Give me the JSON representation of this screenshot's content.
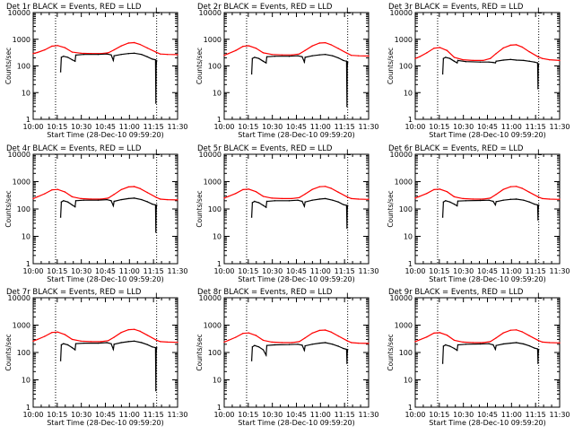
{
  "figure": {
    "x_title": "Start Time (28-Dec-10 09:59:20)",
    "y_label": "Counts/sec",
    "legend_marker": "L",
    "x_ticks": [
      "10:00",
      "10:15",
      "10:30",
      "10:45",
      "11:00",
      "11:15",
      "11:30"
    ],
    "y_ticks": [
      "1",
      "10",
      "100",
      "1000",
      "10000"
    ]
  },
  "colors": {
    "events": "#000000",
    "lld": "#ff0000",
    "frame": "#000000"
  },
  "chart_data": [
    {
      "type": "line",
      "title": "Det 1r BLACK = Events, RED = LLD",
      "xlim": [
        0,
        100
      ],
      "ylim": [
        1,
        10000
      ],
      "y_scale": "log",
      "vlines": [
        15.5,
        85.5
      ],
      "series": [
        {
          "color": "red",
          "x": [
            0,
            3,
            8,
            13,
            17,
            22,
            27,
            33,
            40,
            47,
            52,
            56,
            61,
            66,
            70,
            74,
            79,
            85,
            88,
            93,
            100
          ],
          "y": [
            290,
            320,
            400,
            550,
            580,
            480,
            330,
            300,
            290,
            290,
            310,
            400,
            560,
            720,
            750,
            640,
            470,
            330,
            280,
            270,
            265
          ]
        },
        {
          "color": "black",
          "x": [
            19,
            19.5,
            21,
            24,
            27,
            29,
            29.5,
            35,
            45,
            51,
            54,
            55.5,
            56,
            61,
            66,
            70,
            75,
            79,
            82.5,
            84.7,
            85,
            85.2,
            85.5
          ],
          "y": [
            60,
            210,
            230,
            210,
            170,
            150,
            255,
            270,
            270,
            280,
            260,
            160,
            240,
            270,
            290,
            300,
            270,
            220,
            180,
            170,
            4,
            110,
            160
          ]
        }
      ]
    },
    {
      "type": "line",
      "title": "Det 2r BLACK = Events, RED = LLD",
      "xlim": [
        0,
        100
      ],
      "ylim": [
        1,
        10000
      ],
      "y_scale": "log",
      "vlines": [
        15.5,
        85.5
      ],
      "series": [
        {
          "color": "red",
          "x": [
            0,
            3,
            8,
            13,
            17,
            22,
            27,
            33,
            40,
            47,
            52,
            56,
            61,
            66,
            70,
            74,
            79,
            85,
            88,
            93,
            100
          ],
          "y": [
            250,
            290,
            380,
            540,
            570,
            460,
            310,
            270,
            260,
            260,
            280,
            380,
            560,
            720,
            740,
            620,
            450,
            300,
            250,
            240,
            235
          ]
        },
        {
          "color": "black",
          "x": [
            19,
            19.5,
            21,
            24,
            27,
            29,
            29.5,
            35,
            45,
            51,
            54,
            55.5,
            56,
            61,
            66,
            70,
            75,
            79,
            82.5,
            84.7,
            85,
            85.2,
            85.5
          ],
          "y": [
            50,
            190,
            210,
            190,
            150,
            130,
            220,
            230,
            230,
            240,
            220,
            140,
            210,
            240,
            260,
            270,
            240,
            200,
            160,
            150,
            3,
            100,
            140
          ]
        }
      ]
    },
    {
      "type": "line",
      "title": "Det 3r BLACK = Events, RED = LLD",
      "xlim": [
        0,
        100
      ],
      "ylim": [
        1,
        10000
      ],
      "y_scale": "log",
      "vlines": [
        15.5,
        85.5
      ],
      "series": [
        {
          "color": "red",
          "x": [
            0,
            3,
            8,
            13,
            17,
            22,
            27,
            33,
            40,
            47,
            52,
            56,
            61,
            66,
            70,
            74,
            79,
            85,
            88,
            93,
            100
          ],
          "y": [
            190,
            220,
            310,
            460,
            490,
            380,
            210,
            170,
            160,
            160,
            190,
            290,
            470,
            600,
            620,
            510,
            340,
            220,
            190,
            170,
            160
          ]
        },
        {
          "color": "black",
          "x": [
            19,
            19.5,
            21,
            24,
            27,
            29,
            29.5,
            35,
            45,
            51,
            54,
            55.5,
            56,
            61,
            66,
            70,
            75,
            79,
            82.5,
            84.7,
            85,
            85.2,
            85.5
          ],
          "y": [
            50,
            190,
            210,
            190,
            150,
            130,
            160,
            145,
            140,
            140,
            135,
            130,
            150,
            165,
            175,
            165,
            160,
            150,
            140,
            130,
            14,
            90,
            120
          ]
        }
      ]
    },
    {
      "type": "line",
      "title": "Det 4r BLACK = Events, RED = LLD",
      "xlim": [
        0,
        100
      ],
      "ylim": [
        1,
        10000
      ],
      "y_scale": "log",
      "vlines": [
        15.5,
        85.5
      ],
      "series": [
        {
          "color": "red",
          "x": [
            0,
            3,
            8,
            13,
            17,
            22,
            27,
            33,
            40,
            47,
            52,
            56,
            61,
            66,
            70,
            74,
            79,
            85,
            88,
            93,
            100
          ],
          "y": [
            240,
            280,
            360,
            500,
            520,
            420,
            280,
            240,
            230,
            230,
            250,
            340,
            510,
            640,
            660,
            560,
            400,
            270,
            230,
            220,
            215
          ]
        },
        {
          "color": "black",
          "x": [
            19,
            19.5,
            21,
            24,
            27,
            29,
            29.5,
            35,
            45,
            51,
            54,
            55.5,
            56,
            61,
            66,
            70,
            75,
            79,
            82.5,
            84.7,
            85,
            85.2,
            85.5
          ],
          "y": [
            50,
            180,
            200,
            180,
            140,
            120,
            200,
            210,
            210,
            220,
            200,
            130,
            190,
            220,
            240,
            250,
            220,
            185,
            150,
            140,
            14,
            100,
            140
          ]
        }
      ]
    },
    {
      "type": "line",
      "title": "Det 5r BLACK = Events, RED = LLD",
      "xlim": [
        0,
        100
      ],
      "ylim": [
        1,
        10000
      ],
      "y_scale": "log",
      "vlines": [
        15.5,
        85.5
      ],
      "series": [
        {
          "color": "red",
          "x": [
            0,
            3,
            8,
            13,
            17,
            22,
            27,
            33,
            40,
            47,
            52,
            56,
            61,
            66,
            70,
            74,
            79,
            85,
            88,
            93,
            100
          ],
          "y": [
            250,
            290,
            370,
            510,
            530,
            430,
            290,
            250,
            240,
            240,
            260,
            350,
            520,
            650,
            670,
            570,
            410,
            280,
            240,
            230,
            225
          ]
        },
        {
          "color": "black",
          "x": [
            19,
            19.5,
            21,
            24,
            27,
            29,
            29.5,
            35,
            45,
            51,
            54,
            55.5,
            56,
            61,
            66,
            70,
            75,
            79,
            82.5,
            84.7,
            85,
            85.2,
            85.5
          ],
          "y": [
            50,
            170,
            190,
            170,
            135,
            115,
            190,
            200,
            200,
            210,
            190,
            125,
            180,
            210,
            230,
            240,
            210,
            180,
            145,
            135,
            20,
            100,
            135
          ]
        }
      ]
    },
    {
      "type": "line",
      "title": "Det 6r BLACK = Events, RED = LLD",
      "xlim": [
        0,
        100
      ],
      "ylim": [
        1,
        10000
      ],
      "y_scale": "log",
      "vlines": [
        15.5,
        85.5
      ],
      "series": [
        {
          "color": "red",
          "x": [
            0,
            3,
            8,
            13,
            17,
            22,
            27,
            33,
            40,
            47,
            52,
            56,
            61,
            66,
            70,
            74,
            79,
            85,
            88,
            93,
            100
          ],
          "y": [
            250,
            290,
            370,
            510,
            530,
            430,
            280,
            240,
            230,
            230,
            250,
            340,
            520,
            650,
            670,
            570,
            410,
            280,
            240,
            230,
            225
          ]
        },
        {
          "color": "black",
          "x": [
            19,
            19.5,
            21,
            24,
            27,
            29,
            29.5,
            35,
            45,
            51,
            54,
            55.5,
            56,
            61,
            66,
            70,
            75,
            79,
            82.5,
            84.7,
            85,
            85.2,
            85.5
          ],
          "y": [
            50,
            180,
            200,
            180,
            150,
            130,
            195,
            200,
            205,
            210,
            190,
            140,
            185,
            210,
            225,
            230,
            210,
            180,
            150,
            140,
            40,
            110,
            140
          ]
        }
      ]
    },
    {
      "type": "line",
      "title": "Det 7r BLACK = Events, RED = LLD",
      "xlim": [
        0,
        100
      ],
      "ylim": [
        1,
        10000
      ],
      "y_scale": "log",
      "vlines": [
        15.5,
        85.5
      ],
      "series": [
        {
          "color": "red",
          "x": [
            0,
            3,
            8,
            13,
            17,
            22,
            27,
            33,
            40,
            47,
            52,
            56,
            61,
            66,
            70,
            74,
            79,
            85,
            88,
            93,
            100
          ],
          "y": [
            260,
            300,
            390,
            540,
            560,
            450,
            300,
            260,
            250,
            250,
            270,
            360,
            540,
            680,
            700,
            600,
            430,
            290,
            250,
            240,
            235
          ]
        },
        {
          "color": "black",
          "x": [
            19,
            19.5,
            21,
            24,
            27,
            29,
            29.5,
            35,
            45,
            51,
            54,
            55.5,
            56,
            61,
            66,
            70,
            75,
            79,
            82.5,
            84.7,
            85,
            85.2,
            85.5
          ],
          "y": [
            50,
            190,
            210,
            190,
            150,
            125,
            210,
            220,
            220,
            230,
            210,
            130,
            200,
            230,
            250,
            260,
            230,
            195,
            160,
            150,
            4,
            110,
            150
          ]
        }
      ]
    },
    {
      "type": "line",
      "title": "Det 8r BLACK = Events, RED = LLD",
      "xlim": [
        0,
        100
      ],
      "ylim": [
        1,
        10000
      ],
      "y_scale": "log",
      "vlines": [
        15.5,
        85.5
      ],
      "series": [
        {
          "color": "red",
          "x": [
            0,
            3,
            8,
            13,
            17,
            22,
            27,
            33,
            40,
            47,
            52,
            56,
            61,
            66,
            70,
            74,
            79,
            85,
            88,
            93,
            100
          ],
          "y": [
            240,
            280,
            360,
            500,
            520,
            420,
            280,
            240,
            230,
            230,
            250,
            340,
            510,
            640,
            660,
            560,
            400,
            270,
            230,
            220,
            215
          ]
        },
        {
          "color": "black",
          "x": [
            19,
            19.5,
            21,
            24,
            27,
            29,
            29.5,
            35,
            45,
            51,
            54,
            55.5,
            56,
            61,
            66,
            70,
            75,
            79,
            82.5,
            84.7,
            85,
            85.2,
            85.5
          ],
          "y": [
            50,
            160,
            180,
            160,
            125,
            80,
            180,
            190,
            195,
            200,
            185,
            120,
            175,
            200,
            220,
            230,
            200,
            170,
            140,
            130,
            40,
            100,
            130
          ]
        }
      ]
    },
    {
      "type": "line",
      "title": "Det 9r BLACK = Events, RED = LLD",
      "xlim": [
        0,
        100
      ],
      "ylim": [
        1,
        10000
      ],
      "y_scale": "log",
      "vlines": [
        15.5,
        85.5
      ],
      "series": [
        {
          "color": "red",
          "x": [
            0,
            3,
            8,
            13,
            17,
            22,
            27,
            33,
            40,
            47,
            52,
            56,
            61,
            66,
            70,
            74,
            79,
            85,
            88,
            93,
            100
          ],
          "y": [
            250,
            290,
            370,
            510,
            530,
            430,
            280,
            240,
            230,
            230,
            250,
            340,
            520,
            650,
            670,
            570,
            410,
            280,
            240,
            230,
            225
          ]
        },
        {
          "color": "black",
          "x": [
            19,
            19.5,
            21,
            24,
            27,
            29,
            29.5,
            35,
            45,
            51,
            54,
            55.5,
            56,
            61,
            66,
            70,
            75,
            79,
            82.5,
            84.7,
            85,
            85.2,
            85.5
          ],
          "y": [
            40,
            170,
            190,
            170,
            140,
            120,
            190,
            200,
            205,
            210,
            190,
            130,
            180,
            205,
            220,
            230,
            205,
            175,
            145,
            135,
            40,
            100,
            130
          ]
        }
      ]
    }
  ]
}
